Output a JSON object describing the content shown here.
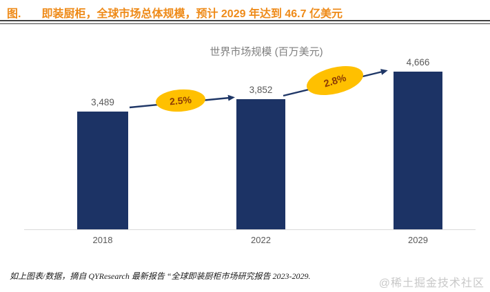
{
  "figure_header": {
    "prefix": "图.",
    "title": "即装厨柜，全球市场总体规模，预计 2029 年达到 46.7 亿美元"
  },
  "chart": {
    "title": "世界市场规模 (百万美元)",
    "bars": [
      {
        "year": "2018",
        "label": "3,489"
      },
      {
        "year": "2022",
        "label": "3,852"
      },
      {
        "year": "2029",
        "label": "4,666"
      }
    ],
    "growth": [
      {
        "label": "2.5%"
      },
      {
        "label": "2.8%"
      }
    ],
    "colors": {
      "bar": "#1c3365",
      "arrow": "#1f3767",
      "growth_ellipse": "#ffc000",
      "growth_text": "#8c3b05",
      "header_orange": "#ee8a18",
      "axis_gray": "#d9d9d9"
    }
  },
  "chart_data": {
    "type": "bar",
    "title": "世界市场规模 (百万美元)",
    "categories": [
      "2018",
      "2022",
      "2029"
    ],
    "values": [
      3489,
      3852,
      4666
    ],
    "value_labels": [
      "3,489",
      "3,852",
      "4,666"
    ],
    "unit": "百万美元",
    "xlabel": "",
    "ylabel": "",
    "ylim": [
      0,
      4800
    ],
    "grid": false,
    "legend": false,
    "annotations": [
      {
        "label": "2.5%",
        "between": [
          "2018",
          "2022"
        ]
      },
      {
        "label": "2.8%",
        "between": [
          "2022",
          "2029"
        ]
      }
    ]
  },
  "footer": {
    "source_note": "如上图表/数据，摘自 QYResearch 最新报告 “全球即装厨柜市场研究报告 2023-2029.",
    "watermark": "@稀土掘金技术社区"
  }
}
